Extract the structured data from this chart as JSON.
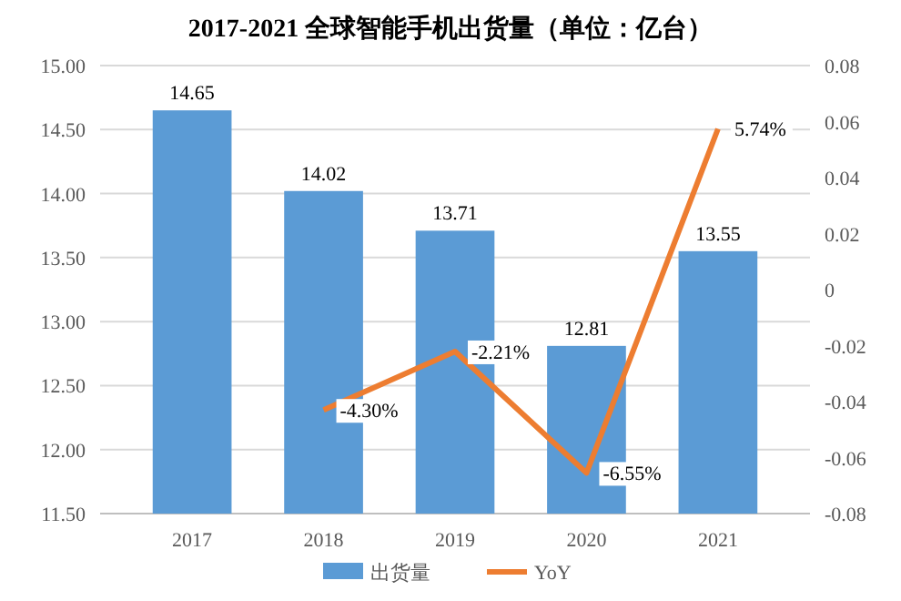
{
  "chart_data": {
    "type": "bar",
    "title": "2017-2021 全球智能手机出货量（单位：亿台）",
    "categories": [
      "2017",
      "2018",
      "2019",
      "2020",
      "2021"
    ],
    "series": [
      {
        "name": "出货量",
        "color": "#5b9bd5",
        "values": [
          14.65,
          14.02,
          13.71,
          12.81,
          13.55
        ],
        "data_labels": true
      },
      {
        "name": "YoY",
        "type": "line",
        "axis": "y2",
        "color": "#ed7d31",
        "values": [
          null,
          -0.043,
          -0.0221,
          -0.0655,
          0.0574
        ],
        "value_labels": [
          null,
          "-4.30%",
          "-2.21%",
          "-6.55%",
          "5.74%"
        ]
      }
    ],
    "ylim": [
      11.5,
      15
    ],
    "yticks": [
      {
        "value": 11.5,
        "label": "11.50"
      },
      {
        "value": 12,
        "label": "12.00"
      },
      {
        "value": 12.5,
        "label": "12.50"
      },
      {
        "value": 13,
        "label": "13.00"
      },
      {
        "value": 13.5,
        "label": "13.50"
      },
      {
        "value": 14,
        "label": "14.00"
      },
      {
        "value": 14.5,
        "label": "14.50"
      },
      {
        "value": 15,
        "label": "15.00"
      }
    ],
    "y2lim": [
      -0.08,
      0.08
    ],
    "y2ticks": [
      -0.08,
      -0.06,
      -0.04,
      -0.02,
      0,
      0.02,
      0.04,
      0.06,
      0.08
    ],
    "grid": "y",
    "legend": "bottom",
    "marker": "none",
    "line_style": "solid"
  }
}
